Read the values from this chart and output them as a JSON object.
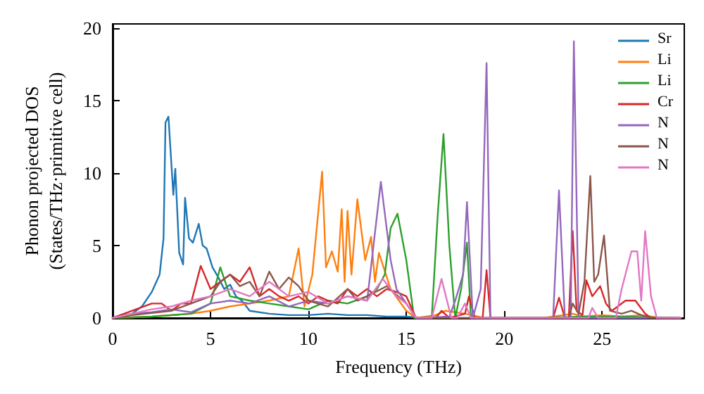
{
  "chart_data": {
    "type": "line",
    "xlabel": "Frequency (THz)",
    "ylabel": "Phonon projected DOS\n(States/THz·primitive cell)",
    "xlim": [
      0,
      29.2
    ],
    "ylim": [
      0,
      20.3
    ],
    "xticks": [
      0,
      5,
      10,
      15,
      20,
      25
    ],
    "yticks": [
      0,
      5,
      10,
      15,
      20
    ],
    "grid": false,
    "legend": "top right",
    "marker": "none",
    "line_style": "solid",
    "series": [
      {
        "name": "Sr",
        "color": "#1f77b4",
        "x": [
          0,
          1,
          1.5,
          2,
          2.4,
          2.6,
          2.7,
          2.85,
          3.1,
          3.2,
          3.4,
          3.6,
          3.7,
          3.9,
          4.1,
          4.4,
          4.6,
          4.8,
          5.1,
          5.4,
          5.7,
          6,
          6.3,
          6.6,
          7,
          8,
          9,
          10,
          11,
          12,
          13,
          14,
          15,
          16,
          29
        ],
        "values": [
          0,
          0.3,
          0.8,
          1.8,
          3,
          5.5,
          13.5,
          13.9,
          8.5,
          10.3,
          4.5,
          3.7,
          8.3,
          5.5,
          5.2,
          6.5,
          5,
          4.8,
          3.5,
          2.8,
          2,
          2.3,
          1.5,
          1.2,
          0.5,
          0.3,
          0.2,
          0.2,
          0.3,
          0.2,
          0.2,
          0.1,
          0.1,
          0,
          0
        ]
      },
      {
        "name": "Li",
        "color": "#ff7f0e",
        "x": [
          0,
          2,
          4,
          5,
          6,
          7,
          8,
          9,
          9.5,
          9.8,
          10.2,
          10.7,
          10.9,
          11.2,
          11.5,
          11.7,
          11.85,
          12,
          12.2,
          12.5,
          12.9,
          13.2,
          13.4,
          13.6,
          14.2,
          15,
          15.5,
          16.5,
          17,
          18,
          19,
          22,
          23.5,
          24,
          25,
          26,
          27,
          28,
          29
        ],
        "values": [
          0,
          0.1,
          0.3,
          0.5,
          0.8,
          1,
          1.2,
          1.5,
          4.8,
          0.8,
          3,
          10.1,
          3.5,
          4.6,
          3.2,
          7.5,
          2.5,
          7.4,
          3,
          8.2,
          4,
          5.6,
          2.5,
          4.5,
          2,
          0.5,
          0,
          0.2,
          0.5,
          0.3,
          0,
          0,
          0.3,
          0.1,
          0.2,
          0.1,
          0.2,
          0,
          0
        ]
      },
      {
        "name": "Li",
        "color": "#2ca02c",
        "x": [
          0,
          2,
          4,
          5,
          5.5,
          6,
          7,
          8,
          9,
          10,
          11,
          12,
          13,
          13.5,
          13.9,
          14.2,
          14.55,
          15,
          15.4,
          16.3,
          16.6,
          16.9,
          17.2,
          17.5,
          17.8,
          18.1,
          18.3,
          22,
          24,
          26,
          29
        ],
        "values": [
          0,
          0.1,
          0.3,
          1,
          3.5,
          1.5,
          1.2,
          1,
          0.8,
          0.6,
          1.2,
          1,
          1.5,
          2,
          3,
          6.2,
          7.2,
          4,
          0,
          0,
          7,
          12.7,
          5,
          0,
          2,
          5.2,
          0,
          0,
          0.1,
          0.1,
          0
        ]
      },
      {
        "name": "Cr",
        "color": "#d62728",
        "x": [
          0,
          1,
          2,
          2.5,
          3,
          3.5,
          4,
          4.5,
          5,
          5.5,
          6,
          6.5,
          7,
          7.5,
          8,
          8.5,
          9,
          9.5,
          10,
          10.5,
          11,
          11.5,
          12,
          12.5,
          13,
          13.5,
          14,
          14.5,
          15,
          15.5,
          16.5,
          16.8,
          17.2,
          18,
          18.2,
          18.5,
          18.9,
          19.1,
          19.3,
          22.5,
          22.8,
          23.1,
          23.3,
          23.5,
          23.7,
          24,
          24.2,
          24.5,
          24.9,
          25.2,
          25.5,
          26.2,
          26.7,
          27.2,
          27.5,
          29
        ],
        "values": [
          0,
          0.5,
          1,
          1,
          0.5,
          1,
          1,
          3.6,
          2,
          2.5,
          3,
          2.5,
          3.5,
          1.5,
          2,
          1.5,
          1.2,
          1.5,
          1,
          1.5,
          1.2,
          1,
          2,
          1.5,
          2,
          1.5,
          2,
          1.8,
          1.5,
          0,
          0,
          0.5,
          0,
          0.3,
          1.5,
          0,
          0,
          3.3,
          0,
          0,
          1.4,
          0,
          0,
          6,
          0.5,
          0.2,
          2.6,
          1.5,
          2.2,
          1,
          0.5,
          1.2,
          1.2,
          0.3,
          0,
          0
        ]
      },
      {
        "name": "N",
        "color": "#9467bd",
        "x": [
          0,
          1,
          2,
          3,
          4,
          5,
          6,
          7,
          8,
          9,
          10,
          11,
          12,
          13,
          13.7,
          14.2,
          14.5,
          15,
          15.5,
          17.2,
          17.5,
          17.9,
          18.1,
          18.4,
          18.8,
          19.1,
          19.3,
          22.5,
          22.8,
          23.1,
          23.4,
          23.56,
          23.8,
          29
        ],
        "values": [
          0,
          0.3,
          0.4,
          0.6,
          0.4,
          1,
          1.2,
          1,
          1.5,
          0.8,
          1.2,
          1,
          1.5,
          1.2,
          9.4,
          4,
          2,
          1,
          0,
          0.1,
          1.2,
          3,
          8,
          0,
          2,
          17.6,
          0,
          0,
          8.8,
          0,
          0,
          19.1,
          0,
          0
        ]
      },
      {
        "name": "N",
        "color": "#8c564b",
        "x": [
          0,
          1,
          3,
          4,
          5,
          5.5,
          6,
          6.5,
          7,
          7.5,
          8,
          8.5,
          9,
          9.5,
          10,
          11,
          12,
          12.5,
          13,
          14,
          15,
          15.5,
          23.3,
          23.5,
          23.8,
          24.1,
          24.4,
          24.6,
          24.8,
          25.1,
          25.4,
          26,
          26.5,
          27,
          27.5,
          29
        ],
        "values": [
          0,
          0.2,
          0.5,
          1,
          1.5,
          2.5,
          3,
          2.2,
          2.5,
          1.5,
          3.2,
          2,
          2.8,
          2.2,
          1.2,
          0.8,
          2,
          1.2,
          1.5,
          2.2,
          1,
          0,
          0,
          1,
          0.3,
          2.5,
          9.8,
          2.5,
          3,
          5.7,
          0.5,
          0.3,
          0.5,
          0.2,
          0,
          0
        ]
      },
      {
        "name": "N",
        "color": "#e377c2",
        "x": [
          0,
          1,
          2,
          3,
          4,
          5,
          6,
          7,
          8,
          9,
          10,
          11,
          12,
          13,
          13.8,
          14.5,
          15,
          15.5,
          16.3,
          16.8,
          17.3,
          17.6,
          18,
          18.3,
          22,
          24.3,
          24.5,
          24.8,
          25.7,
          26,
          26.5,
          26.8,
          27,
          27.2,
          27.5,
          27.8,
          29
        ],
        "values": [
          0,
          0.3,
          0.6,
          0.8,
          1.2,
          1.5,
          2,
          1.5,
          2.5,
          1.5,
          1.8,
          1,
          1.5,
          1.2,
          2.7,
          1.5,
          1,
          0,
          0,
          2.7,
          0,
          0,
          1,
          0,
          0,
          0,
          0.7,
          0,
          0,
          2,
          4.6,
          4.6,
          1.2,
          6,
          1.5,
          0,
          0
        ]
      }
    ]
  }
}
